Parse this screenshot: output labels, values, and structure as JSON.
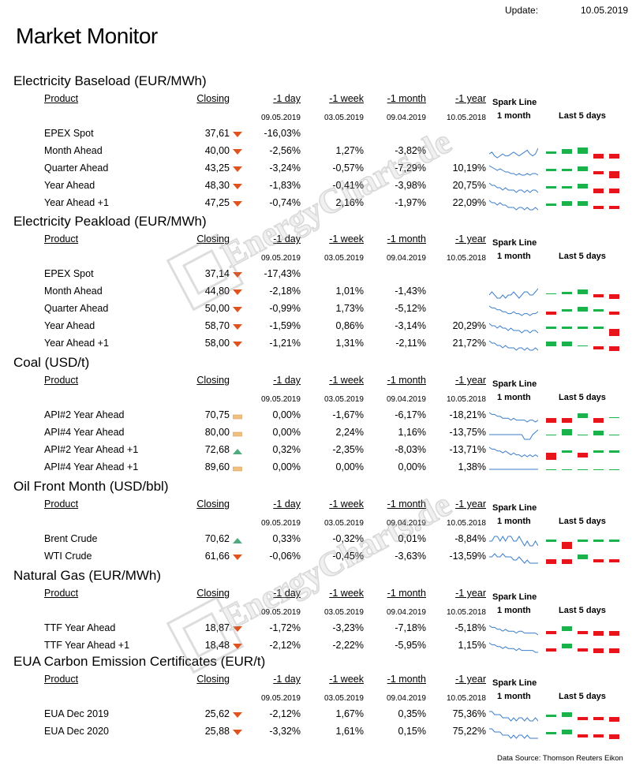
{
  "header": {
    "update_label": "Update:",
    "update_date": "10.05.2019",
    "title": "Market Monitor"
  },
  "columns": {
    "product": "Product",
    "closing": "Closing",
    "d1": "-1 day",
    "w1": "-1 week",
    "m1": "-1 month",
    "y1": "-1 year",
    "spark": "Spark Line",
    "spark_sub": "1 month",
    "last5": "Last 5  days"
  },
  "colors": {
    "up": "#19b24b",
    "down": "#e8141b",
    "down_tri": "#e0531f",
    "up_tri": "#4faa7e",
    "flat": "#f0c080",
    "spark": "#3a7ecb"
  },
  "footer": "Data Source: Thomson Reuters Eikon",
  "watermark": "EnergyCharts.de",
  "sections": [
    {
      "title": "Electricity Baseload (EUR/MWh)",
      "dates": [
        "09.05.2019",
        "03.05.2019",
        "09.04.2019",
        "10.05.2018"
      ],
      "rows": [
        {
          "product": "EPEX Spot",
          "closing": "37,61",
          "ind": "down",
          "d1": "-16,03%",
          "w1": "",
          "m1": "",
          "y1": "",
          "spark": null,
          "bars": null
        },
        {
          "product": "Month Ahead",
          "closing": "40,00",
          "ind": "down",
          "d1": "-2,56%",
          "w1": "1,27%",
          "m1": "-3,82%",
          "y1": "",
          "spark": [
            5,
            6,
            4,
            3,
            4,
            5,
            4,
            4,
            5,
            6,
            5,
            4,
            5,
            6,
            7,
            5,
            4,
            5,
            8
          ],
          "bars": [
            1,
            2,
            3,
            -2,
            -2
          ]
        },
        {
          "product": "Quarter Ahead",
          "closing": "43,25",
          "ind": "down",
          "d1": "-3,24%",
          "w1": "-0,57%",
          "m1": "-7,29%",
          "y1": "10,19%",
          "spark": [
            9,
            8,
            7,
            6,
            7,
            6,
            5,
            5,
            4,
            4,
            3,
            4,
            3,
            3,
            4,
            3,
            4,
            4,
            3
          ],
          "bars": [
            1,
            1,
            2,
            -1,
            -3
          ]
        },
        {
          "product": "Year Ahead",
          "closing": "48,30",
          "ind": "down",
          "d1": "-1,83%",
          "w1": "-0,41%",
          "m1": "-3,98%",
          "y1": "20,75%",
          "spark": [
            7,
            6,
            6,
            5,
            5,
            4,
            5,
            4,
            4,
            4,
            3,
            4,
            4,
            3,
            4,
            3,
            4,
            4,
            3
          ],
          "bars": [
            1,
            1,
            2,
            -2,
            -2
          ]
        },
        {
          "product": "Year  Ahead +1",
          "closing": "47,25",
          "ind": "down",
          "d1": "-0,74%",
          "w1": "2,16%",
          "m1": "-1,97%",
          "y1": "22,09%",
          "spark": [
            7,
            6,
            6,
            5,
            6,
            5,
            5,
            4,
            4,
            4,
            3,
            4,
            4,
            3,
            4,
            3,
            3,
            4,
            3
          ],
          "bars": [
            1,
            2,
            2,
            -1,
            -1
          ]
        }
      ]
    },
    {
      "title": "Electricity Peakload (EUR/MWh)",
      "dates": [
        "09.05.2019",
        "03.05.2019",
        "09.04.2019",
        "10.05.2018"
      ],
      "rows": [
        {
          "product": "EPEX Spot",
          "closing": "37,14",
          "ind": "down",
          "d1": "-17,43%",
          "w1": "",
          "m1": "",
          "y1": "",
          "spark": null,
          "bars": null
        },
        {
          "product": "Month Ahead",
          "closing": "44,80",
          "ind": "down",
          "d1": "-2,18%",
          "w1": "1,01%",
          "m1": "-1,43%",
          "y1": "",
          "spark": [
            5,
            6,
            5,
            4,
            4,
            5,
            4,
            5,
            5,
            6,
            5,
            4,
            5,
            6,
            6,
            5,
            5,
            6,
            7
          ],
          "bars": [
            0,
            1,
            2,
            -1,
            -2
          ]
        },
        {
          "product": "Quarter Ahead",
          "closing": "50,00",
          "ind": "down",
          "d1": "-0,99%",
          "w1": "1,73%",
          "m1": "-5,12%",
          "y1": "",
          "spark": [
            8,
            7,
            7,
            6,
            6,
            5,
            5,
            4,
            4,
            5,
            4,
            4,
            3,
            4,
            4,
            3,
            4,
            4,
            5
          ],
          "bars": [
            -1,
            1,
            2,
            1,
            -1
          ]
        },
        {
          "product": "Year Ahead",
          "closing": "58,70",
          "ind": "down",
          "d1": "-1,59%",
          "w1": "0,86%",
          "m1": "-3,14%",
          "y1": "20,29%",
          "spark": [
            7,
            6,
            6,
            5,
            6,
            5,
            5,
            4,
            5,
            4,
            4,
            4,
            3,
            4,
            4,
            3,
            4,
            4,
            3
          ],
          "bars": [
            1,
            1,
            1,
            1,
            -3
          ]
        },
        {
          "product": "Year  Ahead +1",
          "closing": "58,00",
          "ind": "down",
          "d1": "-1,21%",
          "w1": "1,31%",
          "m1": "-2,11%",
          "y1": "21,72%",
          "spark": [
            7,
            6,
            6,
            5,
            5,
            4,
            5,
            4,
            4,
            4,
            3,
            4,
            4,
            3,
            4,
            3,
            3,
            4,
            3
          ],
          "bars": [
            2,
            2,
            0,
            -1,
            -2
          ]
        }
      ]
    },
    {
      "title": "Coal (USD/t)",
      "dates": [
        "09.05.2019",
        "03.05.2019",
        "09.04.2019",
        "10.05.2018"
      ],
      "rows": [
        {
          "product": "API#2 Year Ahead",
          "closing": "70,75",
          "ind": "flat",
          "d1": "0,00%",
          "w1": "-1,67%",
          "m1": "-6,17%",
          "y1": "-18,21%",
          "spark": [
            8,
            7,
            7,
            6,
            6,
            5,
            5,
            5,
            4,
            5,
            4,
            4,
            4,
            4,
            3,
            4,
            4,
            3,
            4
          ],
          "bars": [
            -2,
            -2,
            2,
            -2,
            0
          ]
        },
        {
          "product": "API#4 Year Ahead",
          "closing": "80,00",
          "ind": "flat",
          "d1": "0,00%",
          "w1": "2,24%",
          "m1": "1,16%",
          "y1": "-13,75%",
          "spark": [
            5,
            5,
            5,
            5,
            5,
            5,
            5,
            5,
            5,
            5,
            5,
            5,
            5,
            3,
            3,
            3,
            5,
            6,
            7
          ],
          "bars": [
            0,
            3,
            0,
            2,
            0
          ]
        },
        {
          "product": "API#2 Year Ahead +1",
          "closing": "72,68",
          "ind": "up",
          "d1": "0,32%",
          "w1": "-2,35%",
          "m1": "-8,03%",
          "y1": "-13,71%",
          "spark": [
            8,
            7,
            7,
            6,
            6,
            5,
            6,
            5,
            4,
            5,
            4,
            4,
            3,
            4,
            3,
            4,
            3,
            4,
            3
          ],
          "bars": [
            -3,
            1,
            -2,
            1,
            1
          ]
        },
        {
          "product": "API#4 Year Ahead +1",
          "closing": "89,60",
          "ind": "flat",
          "d1": "0,00%",
          "w1": "0,00%",
          "m1": "0,00%",
          "y1": "1,38%",
          "spark": [
            5,
            5,
            5,
            5,
            5,
            5,
            5,
            5,
            5,
            5,
            5,
            5,
            5,
            5,
            5,
            5,
            5,
            5,
            5
          ],
          "bars": [
            0,
            0,
            0,
            0,
            0
          ]
        }
      ]
    },
    {
      "title": "Oil Front Month (USD/bbl)",
      "dates": [
        "09.05.2019",
        "03.05.2019",
        "09.04.2019",
        "10.05.2018"
      ],
      "rows": [
        {
          "product": "Brent Crude",
          "closing": "70,62",
          "ind": "up",
          "d1": "0,33%",
          "w1": "-0,32%",
          "m1": "0,01%",
          "y1": "-8,84%",
          "spark": [
            5,
            5,
            6,
            6,
            5,
            6,
            5,
            6,
            6,
            5,
            5,
            6,
            5,
            4,
            5,
            4,
            4,
            5,
            4
          ],
          "bars": [
            1,
            -3,
            1,
            1,
            1
          ]
        },
        {
          "product": "WTI Crude",
          "closing": "61,66",
          "ind": "down",
          "d1": "-0,06%",
          "w1": "-0,45%",
          "m1": "-3,63%",
          "y1": "-13,59%",
          "spark": [
            6,
            6,
            7,
            6,
            6,
            7,
            6,
            6,
            6,
            5,
            5,
            6,
            5,
            4,
            5,
            4,
            4,
            4,
            4
          ],
          "bars": [
            -2,
            -2,
            2,
            -1,
            -1
          ]
        }
      ]
    },
    {
      "title": "Natural Gas (EUR/MWh)",
      "dates": [
        "09.05.2019",
        "03.05.2019",
        "09.04.2019",
        "10.05.2018"
      ],
      "rows": [
        {
          "product": "TTF Year Ahead",
          "closing": "18,87",
          "ind": "down",
          "d1": "-1,72%",
          "w1": "-3,23%",
          "m1": "-7,18%",
          "y1": "-5,18%",
          "spark": [
            8,
            7,
            7,
            6,
            6,
            5,
            6,
            5,
            5,
            5,
            4,
            5,
            5,
            4,
            4,
            4,
            4,
            4,
            3
          ],
          "bars": [
            -1,
            2,
            -1,
            -2,
            -2
          ]
        },
        {
          "product": "TTF Year Ahead +1",
          "closing": "18,48",
          "ind": "down",
          "d1": "-2,12%",
          "w1": "-2,22%",
          "m1": "-5,95%",
          "y1": "1,15%",
          "spark": [
            8,
            7,
            7,
            6,
            6,
            5,
            6,
            5,
            5,
            5,
            4,
            5,
            4,
            4,
            4,
            4,
            4,
            3,
            3
          ],
          "bars": [
            -1,
            2,
            -1,
            -2,
            -2
          ]
        }
      ]
    },
    {
      "title": "EUA Carbon Emission Certificates (EUR/t)",
      "dates": [
        "09.05.2019",
        "03.05.2019",
        "09.04.2019",
        "10.05.2018"
      ],
      "rows": [
        {
          "product": "EUA Dec 2019",
          "closing": "25,62",
          "ind": "down",
          "d1": "-2,12%",
          "w1": "1,67%",
          "m1": "0,35%",
          "y1": "75,36%",
          "spark": [
            7,
            7,
            6,
            6,
            6,
            5,
            5,
            5,
            4,
            5,
            4,
            5,
            5,
            4,
            5,
            4,
            4,
            5,
            4
          ],
          "bars": [
            1,
            2,
            -1,
            -1,
            -2
          ]
        },
        {
          "product": "EUA Dec 2020",
          "closing": "25,88",
          "ind": "down",
          "d1": "-3,32%",
          "w1": "1,61%",
          "m1": "0,15%",
          "y1": "75,22%",
          "spark": [
            7,
            7,
            6,
            6,
            6,
            5,
            5,
            5,
            4,
            5,
            4,
            5,
            5,
            4,
            5,
            4,
            4,
            4,
            4
          ],
          "bars": [
            1,
            2,
            -1,
            -1,
            -2
          ]
        }
      ]
    }
  ]
}
